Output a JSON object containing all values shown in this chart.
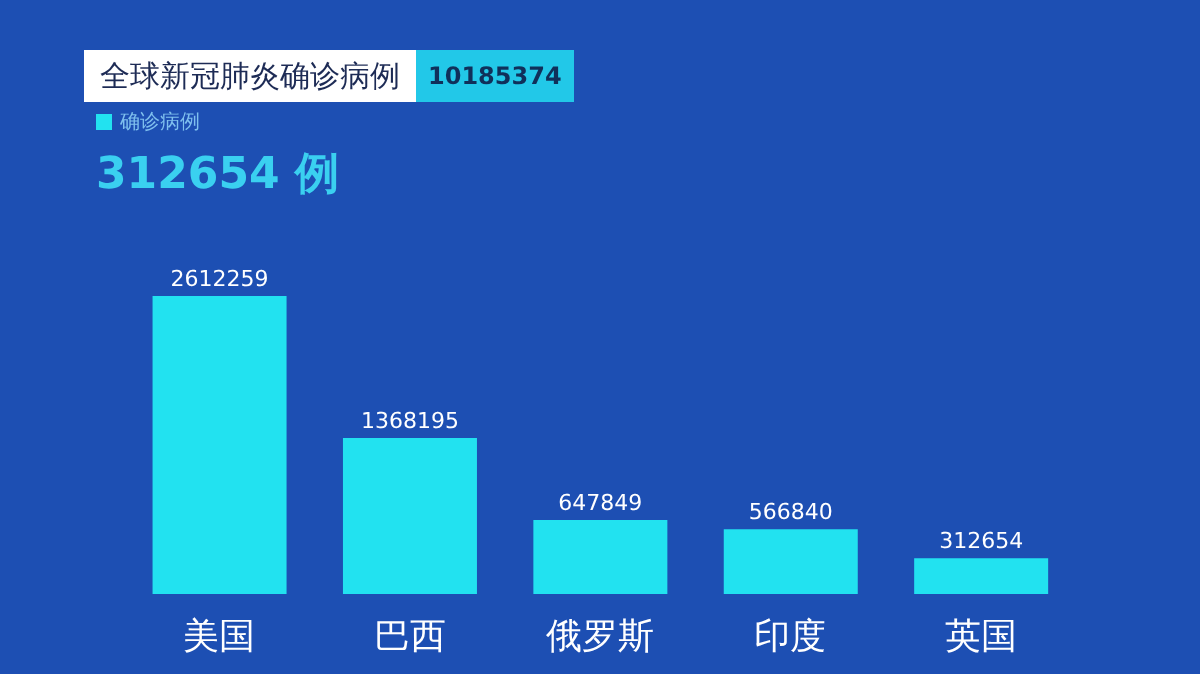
{
  "chart_data": {
    "type": "bar",
    "title": "全球新冠肺炎确诊病例",
    "annotations": [
      "10185374",
      "312654 例"
    ],
    "categories": [
      "美国",
      "巴西",
      "俄罗斯",
      "印度",
      "英国"
    ],
    "series": [
      {
        "name": "确诊病例",
        "color": "#22e2f0",
        "values": [
          2612259,
          1368195,
          647849,
          566840,
          312654
        ]
      }
    ],
    "data_labels": true,
    "legend": "top left",
    "grid": false
  }
}
